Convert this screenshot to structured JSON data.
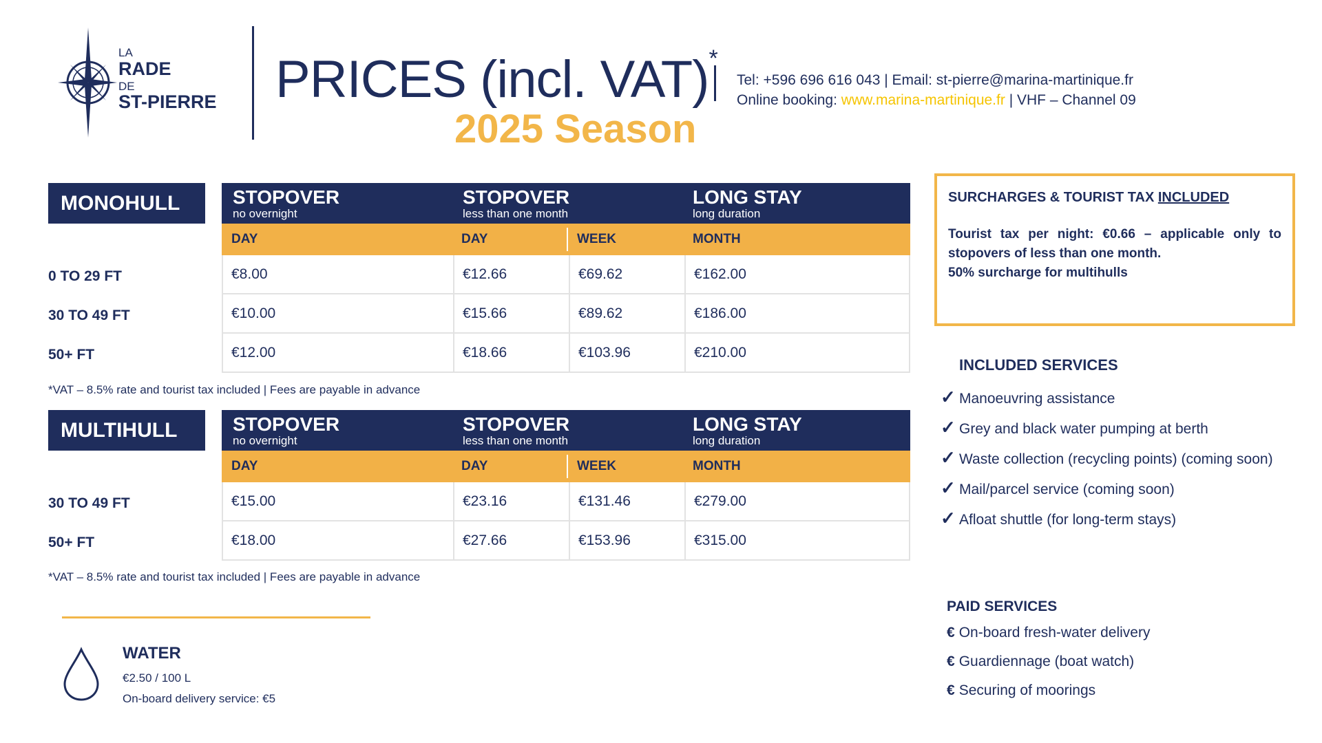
{
  "logo": {
    "la": "LA",
    "rade": "RADE",
    "de": "DE",
    "stpierre": "ST-PIERRE"
  },
  "header": {
    "title": "PRICES (incl. VAT)",
    "title_mark": "*",
    "season": "2025 Season",
    "contact_line1": "Tel: +596 696 616 043 | Email: st-pierre@marina-martinique.fr",
    "booking_label": "Online booking: ",
    "booking_link": "www.marina-martinique.fr",
    "booking_suffix": " | VHF – Channel 09"
  },
  "columns": {
    "stopover_title": "STOPOVER",
    "stopover_sub": "no overnight",
    "stopover2_title": "STOPOVER",
    "stopover2_sub": "less than one month",
    "long_title": "LONG STAY",
    "long_sub": "long duration",
    "day": "DAY",
    "day2": "DAY",
    "week": "WEEK",
    "month": "MONTH"
  },
  "monohull": {
    "label": "MONOHULL",
    "rows": [
      {
        "size": "0 TO 29 FT",
        "day": "€8.00",
        "day2": "€12.66",
        "week": "€69.62",
        "month": "€162.00"
      },
      {
        "size": "30 TO 49 FT",
        "day": "€10.00",
        "day2": "€15.66",
        "week": "€89.62",
        "month": "€186.00"
      },
      {
        "size": "50+ FT",
        "day": "€12.00",
        "day2": "€18.66",
        "week": "€103.96",
        "month": "€210.00"
      }
    ],
    "note": "*VAT – 8.5% rate and tourist tax included | Fees are payable in advance"
  },
  "multihull": {
    "label": "MULTIHULL",
    "rows": [
      {
        "size": "30 TO 49 FT",
        "day": "€15.00",
        "day2": "€23.16",
        "week": "€131.46",
        "month": "€279.00"
      },
      {
        "size": "50+ FT",
        "day": "€18.00",
        "day2": "€27.66",
        "week": "€153.96",
        "month": "€315.00"
      }
    ],
    "note": "*VAT – 8.5% rate and tourist tax included | Fees are payable in advance"
  },
  "water": {
    "title": "WATER",
    "price": "€2.50 / 100 L",
    "delivery": "On-board delivery service: €5"
  },
  "surcharges": {
    "title_prefix": "SURCHARGES & TOURIST TAX ",
    "title_underlined": "INCLUDED",
    "line1": "Tourist tax per night: €0.66 – applicable only to stopovers of less than one month.",
    "line2": "50% surcharge for multihulls"
  },
  "included": {
    "title": "INCLUDED SERVICES",
    "items": [
      "Manoeuvring assistance",
      "Grey and black water pumping at berth",
      "Waste collection (recycling points) (coming soon)",
      "Mail/parcel service (coming soon)",
      "Afloat shuttle (for long-term stays)"
    ]
  },
  "paid": {
    "title": "PAID SERVICES",
    "items": [
      "On-board fresh-water delivery",
      "Guardiennage (boat watch)",
      "Securing of moorings"
    ]
  },
  "colors": {
    "navy": "#1f2d5c",
    "orange": "#f2b147",
    "gold": "#f2b649",
    "link": "#f5c400"
  }
}
